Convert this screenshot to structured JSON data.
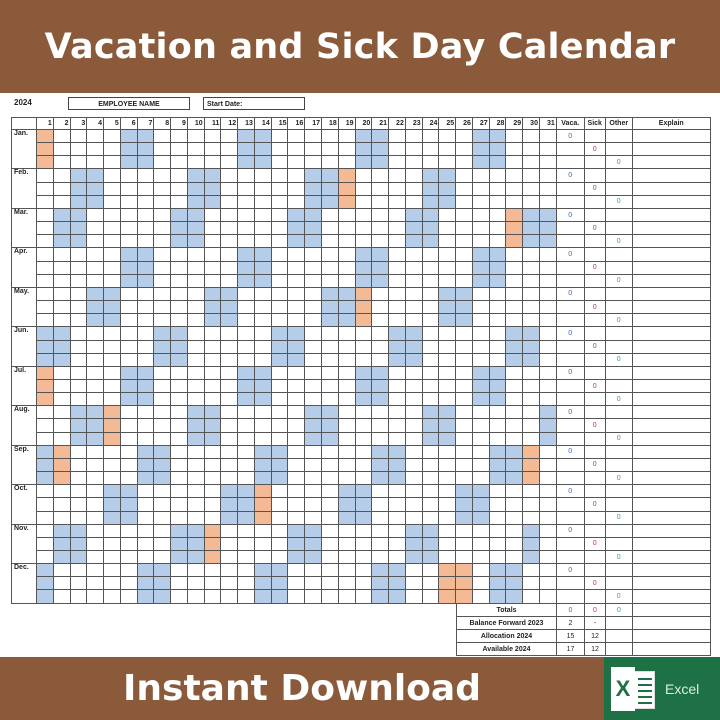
{
  "header": {
    "title": "Vacation and Sick Day Calendar"
  },
  "form": {
    "year": "2024",
    "employee_label": "EMPLOYEE NAME",
    "start_date_label": "Start Date:"
  },
  "colors": {
    "brand_brown": "#8a5a3b",
    "weekend": "#b6cdea",
    "holiday": "#f4ba95",
    "vacation": "#3a6fb8",
    "sick": "#d03030",
    "other": "#4aa060",
    "excel_green": "#1e7145"
  },
  "grid": {
    "days": [
      "1",
      "2",
      "3",
      "4",
      "5",
      "6",
      "7",
      "8",
      "9",
      "10",
      "11",
      "12",
      "13",
      "14",
      "15",
      "16",
      "17",
      "18",
      "19",
      "20",
      "21",
      "22",
      "23",
      "24",
      "25",
      "26",
      "27",
      "28",
      "29",
      "30",
      "31"
    ],
    "columns": {
      "vaca": "Vaca.",
      "sick": "Sick",
      "other": "Other",
      "explain": "Explain"
    },
    "months": [
      {
        "label": "Jan.",
        "vaca": "0",
        "sick": "0",
        "other": "0",
        "holidays": [
          1
        ]
      },
      {
        "label": "Feb.",
        "vaca": "0",
        "sick": "0",
        "other": "0",
        "holidays": [
          19
        ]
      },
      {
        "label": "Mar.",
        "vaca": "0",
        "sick": "0",
        "other": "0",
        "holidays": [
          29
        ]
      },
      {
        "label": "Apr.",
        "vaca": "0",
        "sick": "0",
        "other": "0",
        "holidays": []
      },
      {
        "label": "May.",
        "vaca": "0",
        "sick": "0",
        "other": "0",
        "holidays": [
          20
        ]
      },
      {
        "label": "Jun.",
        "vaca": "0",
        "sick": "0",
        "other": "0",
        "holidays": []
      },
      {
        "label": "Jul.",
        "vaca": "0",
        "sick": "0",
        "other": "0",
        "holidays": [
          1
        ]
      },
      {
        "label": "Aug.",
        "vaca": "0",
        "sick": "0",
        "other": "0",
        "holidays": [
          5
        ]
      },
      {
        "label": "Sep.",
        "vaca": "0",
        "sick": "0",
        "other": "0",
        "holidays": [
          2,
          30
        ]
      },
      {
        "label": "Oct.",
        "vaca": "0",
        "sick": "0",
        "other": "0",
        "holidays": [
          14
        ]
      },
      {
        "label": "Nov.",
        "vaca": "0",
        "sick": "0",
        "other": "0",
        "holidays": [
          11
        ]
      },
      {
        "label": "Dec.",
        "vaca": "0",
        "sick": "0",
        "other": "0",
        "holidays": [
          25,
          26
        ]
      }
    ]
  },
  "summary": [
    {
      "label": "Totals",
      "vaca": "0",
      "sick": "0",
      "other": "0"
    },
    {
      "label": "Balance Forward 2023",
      "vaca": "2",
      "sick": "-",
      "other": ""
    },
    {
      "label": "Allocation 2024",
      "vaca": "15",
      "sick": "12",
      "other": ""
    },
    {
      "label": "Available 2024",
      "vaca": "17",
      "sick": "12",
      "other": ""
    }
  ],
  "footer": {
    "cta": "Instant Download",
    "excel_label": "Excel",
    "excel_icon": "excel-logo-icon"
  }
}
